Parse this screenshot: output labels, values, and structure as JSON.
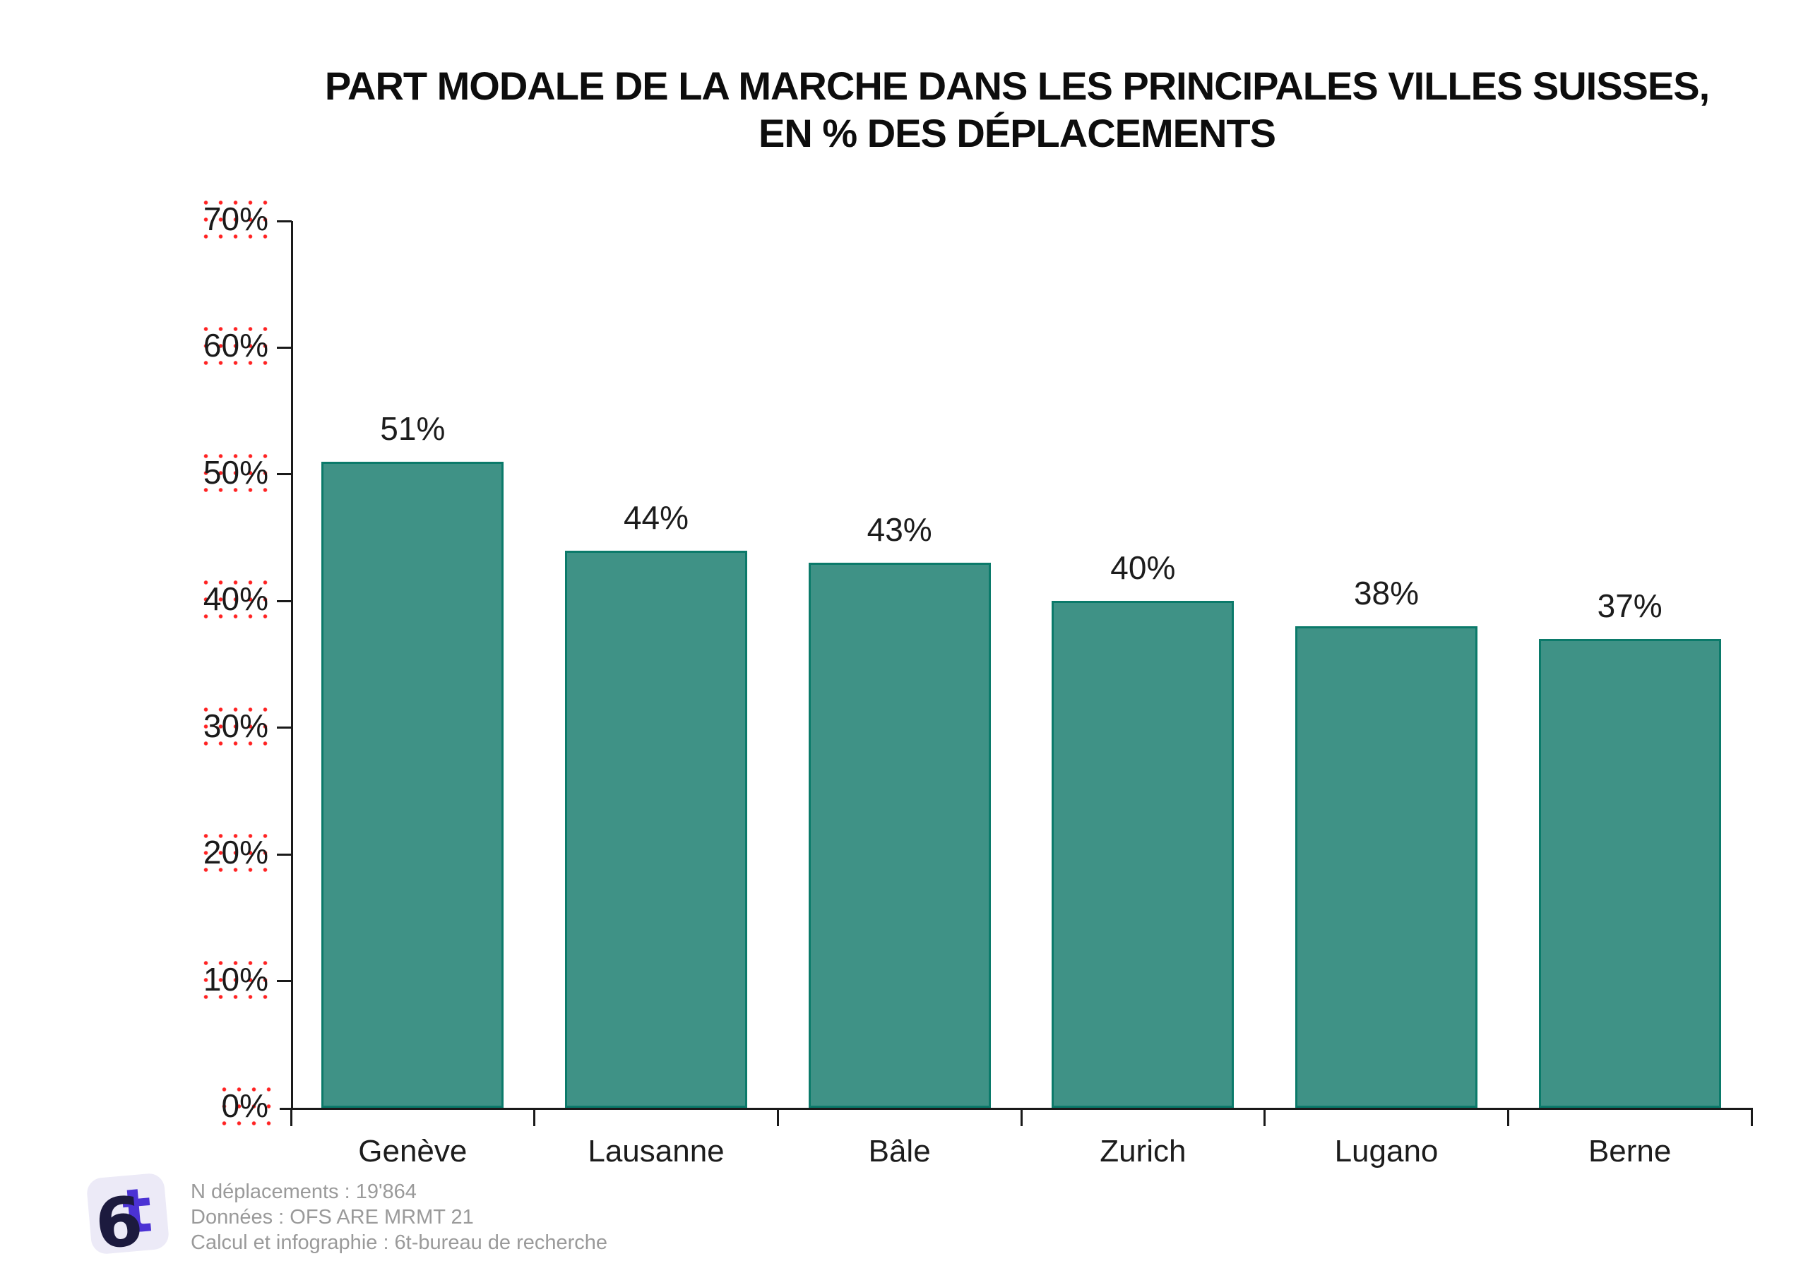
{
  "title": {
    "line1": "PART MODALE DE LA MARCHE DANS LES PRINCIPALES VILLES SUISSES,",
    "line2": "EN % DES DÉPLACEMENTS"
  },
  "chart_data": {
    "type": "bar",
    "title": "PART MODALE DE LA MARCHE DANS LES PRINCIPALES VILLES SUISSES, EN % DES DÉPLACEMENTS",
    "categories": [
      "Genève",
      "Lausanne",
      "Bâle",
      "Zurich",
      "Lugano",
      "Berne"
    ],
    "values": [
      51,
      44,
      43,
      40,
      38,
      37
    ],
    "value_labels": [
      "51%",
      "44%",
      "43%",
      "40%",
      "38%",
      "37%"
    ],
    "xlabel": "",
    "ylabel": "",
    "ylim": [
      0,
      70
    ],
    "ytick_interval": 10,
    "ytick_labels": [
      "0%",
      "10%",
      "20%",
      "30%",
      "40%",
      "50%",
      "60%",
      "70%"
    ],
    "grid": false,
    "legend": "none",
    "bar_fill_color": "#3F9286",
    "bar_border_color": "#0B7A6A",
    "axis_color": "#1a1a1a",
    "tick_label_watermark_dot_color": "#FF0A0A"
  },
  "footer": {
    "logo_name": "6t-bureau-de-recherche-logo",
    "logo_bg_color": "#ECEAF7",
    "logo_six_color": "#1C1A3E",
    "logo_t_color": "#4B32D4",
    "lines": [
      "N déplacements : 19'864",
      "Données : OFS ARE MRMT 21",
      "Calcul et infographie : 6t-bureau de recherche"
    ]
  }
}
